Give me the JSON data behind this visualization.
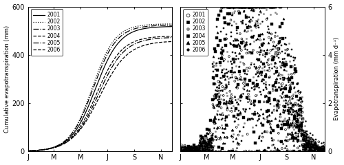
{
  "left_ylabel": "Cumulative evapotranspiration (mm)",
  "right_ylabel": "Evapotranspiration (mm d⁻¹)",
  "xlabels": [
    "J",
    "M",
    "M",
    "J",
    "S",
    "N"
  ],
  "left_ylim": [
    0,
    600
  ],
  "right_ylim": [
    0,
    6
  ],
  "left_yticks": [
    0,
    200,
    400,
    600
  ],
  "right_yticks": [
    0,
    2,
    4,
    6
  ],
  "years": [
    2001,
    2002,
    2003,
    2004,
    2005,
    2006
  ],
  "line_styles": [
    "-",
    ":",
    "-.",
    "--",
    "-.",
    "--"
  ],
  "background": "#ffffff",
  "cum_et": {
    "2001": {
      "mid": 155,
      "scale": 28,
      "total": 520
    },
    "2002": {
      "mid": 148,
      "scale": 26,
      "total": 530
    },
    "2003": {
      "mid": 162,
      "scale": 30,
      "total": 475
    },
    "2004": {
      "mid": 165,
      "scale": 32,
      "total": 460
    },
    "2005": {
      "mid": 150,
      "scale": 27,
      "total": 525
    },
    "2006": {
      "mid": 158,
      "scale": 29,
      "total": 480
    }
  }
}
